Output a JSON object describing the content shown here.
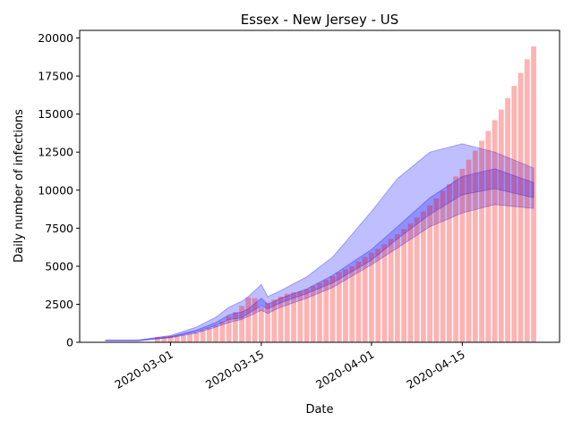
{
  "chart_data": {
    "type": "bar",
    "title": "Essex - New Jersey - US",
    "xlabel": "Date",
    "ylabel": "Daily number of infections",
    "xlim": [
      "2020-02-16",
      "2020-04-30"
    ],
    "xticks": [
      "2020-03-01",
      "2020-03-15",
      "2020-04-01",
      "2020-04-15"
    ],
    "ylim": [
      0,
      20500
    ],
    "yticks": [
      0,
      2500,
      5000,
      7500,
      10000,
      12500,
      15000,
      17500,
      20000
    ],
    "bars": {
      "color": "#ff0000",
      "x": [
        "2020-02-28",
        "2020-02-29",
        "2020-03-01",
        "2020-03-02",
        "2020-03-03",
        "2020-03-04",
        "2020-03-05",
        "2020-03-06",
        "2020-03-07",
        "2020-03-08",
        "2020-03-09",
        "2020-03-10",
        "2020-03-11",
        "2020-03-12",
        "2020-03-13",
        "2020-03-14",
        "2020-03-15",
        "2020-03-16",
        "2020-03-17",
        "2020-03-18",
        "2020-03-19",
        "2020-03-20",
        "2020-03-21",
        "2020-03-22",
        "2020-03-23",
        "2020-03-24",
        "2020-03-25",
        "2020-03-26",
        "2020-03-27",
        "2020-03-28",
        "2020-03-29",
        "2020-03-30",
        "2020-03-31",
        "2020-04-01",
        "2020-04-02",
        "2020-04-03",
        "2020-04-04",
        "2020-04-05",
        "2020-04-06",
        "2020-04-07",
        "2020-04-08",
        "2020-04-09",
        "2020-04-10",
        "2020-04-11",
        "2020-04-12",
        "2020-04-13",
        "2020-04-14",
        "2020-04-15",
        "2020-04-16",
        "2020-04-17",
        "2020-04-18",
        "2020-04-19",
        "2020-04-20",
        "2020-04-21",
        "2020-04-22",
        "2020-04-23",
        "2020-04-24",
        "2020-04-25",
        "2020-04-26"
      ],
      "values": [
        350,
        380,
        400,
        430,
        480,
        550,
        650,
        800,
        950,
        1100,
        1350,
        1700,
        2000,
        2400,
        2950,
        2900,
        2300,
        2600,
        2800,
        3000,
        3200,
        3300,
        3350,
        3500,
        3700,
        3900,
        4100,
        4350,
        4600,
        4800,
        5000,
        5300,
        5600,
        5900,
        6150,
        6450,
        6800,
        7100,
        7450,
        7800,
        8200,
        8600,
        9000,
        9450,
        9950,
        10400,
        10900,
        11400,
        12000,
        12600,
        13250,
        13900,
        14600,
        15300,
        16050,
        16850,
        17700,
        18600,
        19450
      ]
    },
    "bands": [
      {
        "color": "#0000ff",
        "x": [
          "2020-02-20",
          "2020-02-25",
          "2020-03-01",
          "2020-03-05",
          "2020-03-08",
          "2020-03-10",
          "2020-03-12",
          "2020-03-13",
          "2020-03-15",
          "2020-03-16",
          "2020-03-18",
          "2020-03-22",
          "2020-03-26",
          "2020-04-01",
          "2020-04-05",
          "2020-04-10",
          "2020-04-15",
          "2020-04-20",
          "2020-04-26"
        ],
        "upper": [
          150,
          150,
          450,
          1000,
          1650,
          2300,
          2700,
          3000,
          3800,
          3000,
          3400,
          4300,
          5600,
          8600,
          10760,
          12500,
          13050,
          12500,
          11450
        ],
        "lower": [
          100,
          100,
          300,
          600,
          1000,
          1300,
          1500,
          1700,
          2100,
          1900,
          2300,
          2900,
          3600,
          5100,
          6200,
          7600,
          8500,
          9050,
          8800
        ]
      },
      {
        "color": "#0000ff",
        "x": [
          "2020-02-20",
          "2020-02-25",
          "2020-03-01",
          "2020-03-05",
          "2020-03-08",
          "2020-03-10",
          "2020-03-12",
          "2020-03-13",
          "2020-03-15",
          "2020-03-16",
          "2020-03-18",
          "2020-03-22",
          "2020-03-26",
          "2020-04-01",
          "2020-04-05",
          "2020-04-10",
          "2020-04-15",
          "2020-04-20",
          "2020-04-26"
        ],
        "upper": [
          130,
          130,
          380,
          800,
          1300,
          1800,
          2000,
          2200,
          2900,
          2500,
          2900,
          3500,
          4400,
          6100,
          7600,
          9500,
          10900,
          11400,
          10500
        ],
        "lower": [
          110,
          110,
          330,
          700,
          1100,
          1500,
          1600,
          1900,
          2400,
          2200,
          2600,
          3200,
          3900,
          5400,
          6800,
          8400,
          9700,
          10100,
          9500
        ]
      }
    ]
  }
}
